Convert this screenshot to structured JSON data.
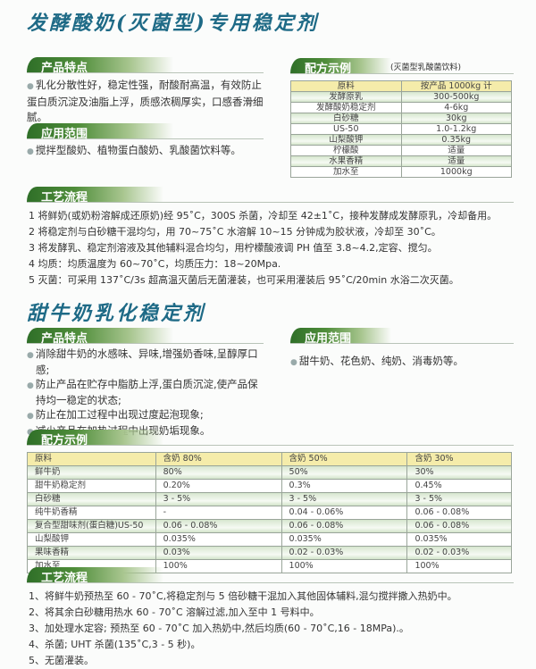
{
  "product1": {
    "title": "发酵酸奶(灭菌型)专用稳定剂",
    "features_header": "产品特点",
    "features": "乳化分散性好，稳定性强，耐酸耐高温，有效防止蛋白质沉淀及油脂上浮，质感浓稠厚实，口感香滑细腻。",
    "scope_header": "应用范围",
    "scope": "搅拌型酸奶、植物蛋白酸奶、乳酸菌饮料等。",
    "recipe_header": "配方示例",
    "recipe_sub": "(灭菌型乳酸菌饮料)",
    "recipe_table": {
      "headers": [
        "原料",
        "按产品 1000kg 计"
      ],
      "rows": [
        [
          "发酵原乳",
          "300-500kg"
        ],
        [
          "发酵酸奶稳定剂",
          "4-6kg"
        ],
        [
          "白砂糖",
          "30kg"
        ],
        [
          "US-50",
          "1.0-1.2kg"
        ],
        [
          "山梨酸钾",
          "0.35kg"
        ],
        [
          "柠檬酸",
          "适量"
        ],
        [
          "水果香精",
          "适量"
        ],
        [
          "加水至",
          "1000kg"
        ]
      ]
    },
    "process_header": "工艺流程",
    "process": [
      "1  将鲜奶(或奶粉溶解成还原奶)经 95˚C，300S 杀菌，冷却至 42±1˚C，接种发酵成发酵原乳，冷却备用。",
      "2  将稳定剂与白砂糖干混均匀，用 70~75˚C 水溶解 10~15 分钟成为胶状液，冷却至 30˚C。",
      "3  将发酵乳、稳定剂溶液及其他辅料混合均匀，用柠檬酸液调 PH 值至 3.8~4.2,定容、搅匀。",
      "4  均质：均质温度为 60~70˚C，均质压力：18~20Mpa.",
      "5  灭菌：可采用 137˚C/3s 超高温灭菌后无菌灌装，也可采用灌装后 95˚C/20min 水浴二次灭菌。"
    ]
  },
  "product2": {
    "title": "甜牛奶乳化稳定剂",
    "features_header": "产品特点",
    "features": [
      "消除甜牛奶的水感味、异味,增强奶香味,呈醇厚口感;",
      "防止产品在贮存中脂肪上浮,蛋白质沉淀,使产品保持均一稳定的状态;",
      "防止在加工过程中出现过度起泡现象;",
      "减少产品在加热过程中出现奶垢现象。"
    ],
    "scope_header": "应用范围",
    "scope": "甜牛奶、花色奶、纯奶、消毒奶等。",
    "recipe_header": "配方示例",
    "recipe_table": {
      "headers": [
        "原料",
        "含奶 80%",
        "含奶 50%",
        "含奶 30%"
      ],
      "rows": [
        [
          "鲜牛奶",
          "80%",
          "50%",
          "30%"
        ],
        [
          "甜牛奶稳定剂",
          "0.20%",
          "0.3%",
          "0.45%"
        ],
        [
          "白砂糖",
          "3 - 5%",
          "3 - 5%",
          "3 - 5%"
        ],
        [
          "纯牛奶香精",
          "-",
          "0.04 - 0.06%",
          "0.06 - 0.08%"
        ],
        [
          "复合型甜味剂(蛋白糖)US-50",
          "0.06 - 0.08%",
          "0.06 - 0.08%",
          "0.06 - 0.08%"
        ],
        [
          "山梨酸钾",
          "0.035%",
          "0.035%",
          "0.035%"
        ],
        [
          "果味香精",
          "0.03%",
          "0.02 - 0.03%",
          "0.02 - 0.03%"
        ],
        [
          "加水至",
          "100%",
          "100%",
          "100%"
        ]
      ]
    },
    "process_header": "工艺流程",
    "process": [
      "1、将鲜牛奶预热至 60 - 70˚C,将稳定剂与 5 倍砂糖干混加入其他固体辅料,混匀搅拌撒入热奶中。",
      "2、将其余白砂糖用热水 60 - 70˚C 溶解过滤,加入至中 1 号料中。",
      "3、加处理水定容; 预热至 60 - 70˚C 加入热奶中,然后均质(60 - 70˚C,16 - 18MPa).。",
      "4、杀菌; UHT 杀菌(135˚C,3 - 5 秒)。",
      "5、无菌灌装。"
    ]
  }
}
